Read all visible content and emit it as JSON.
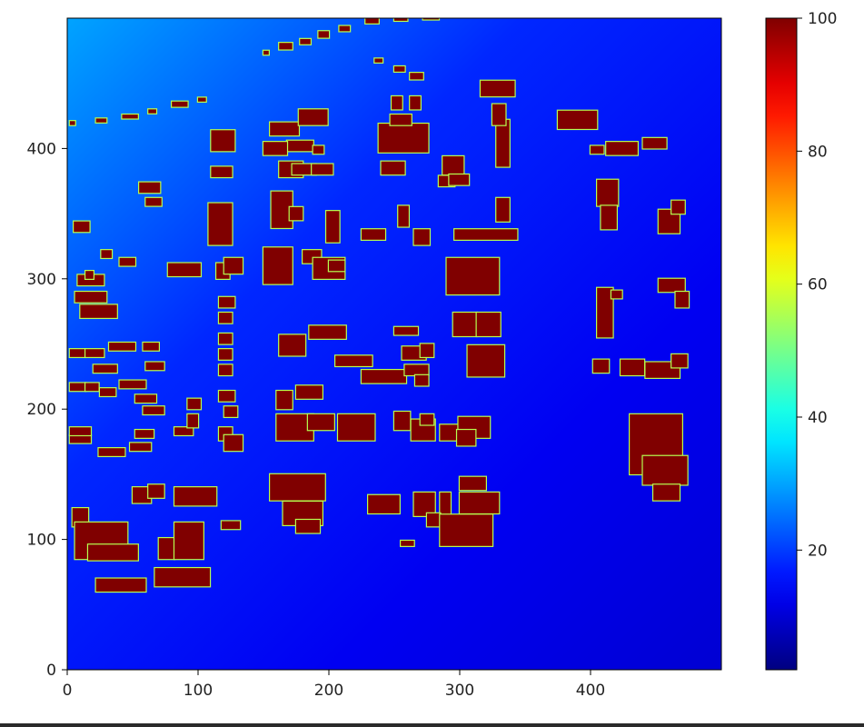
{
  "chart_data": {
    "type": "heatmap",
    "title": "",
    "xlabel": "",
    "ylabel": "",
    "xlim": [
      0,
      500
    ],
    "ylim": [
      0,
      500
    ],
    "xticks": [
      0,
      100,
      200,
      300,
      400
    ],
    "yticks": [
      0,
      100,
      200,
      300,
      400
    ],
    "colormap": "jet",
    "colorbar": {
      "vmin": 2,
      "vmax": 100,
      "ticks": [
        20,
        40,
        60,
        80,
        100
      ]
    },
    "background_level": 12,
    "background_high_corner": "top-left",
    "buildings_value": 100,
    "buildings": [
      [
        2,
        418,
        4,
        3
      ],
      [
        22,
        420,
        8,
        3
      ],
      [
        42,
        423,
        12,
        3
      ],
      [
        62,
        427,
        6,
        3
      ],
      [
        80,
        432,
        12,
        4
      ],
      [
        100,
        436,
        6,
        3
      ],
      [
        150,
        472,
        4,
        3
      ],
      [
        162,
        476,
        10,
        5
      ],
      [
        178,
        480,
        8,
        4
      ],
      [
        192,
        485,
        8,
        5
      ],
      [
        208,
        490,
        8,
        4
      ],
      [
        228,
        496,
        10,
        4
      ],
      [
        250,
        498,
        10,
        3
      ],
      [
        272,
        499,
        12,
        3
      ],
      [
        235,
        466,
        6,
        3
      ],
      [
        250,
        459,
        8,
        4
      ],
      [
        262,
        453,
        10,
        5
      ],
      [
        316,
        440,
        26,
        12
      ],
      [
        375,
        415,
        30,
        14
      ],
      [
        110,
        398,
        18,
        16
      ],
      [
        110,
        378,
        16,
        8
      ],
      [
        155,
        410,
        22,
        10
      ],
      [
        168,
        398,
        20,
        8
      ],
      [
        55,
        366,
        16,
        8
      ],
      [
        60,
        356,
        12,
        6
      ],
      [
        108,
        326,
        18,
        32
      ],
      [
        114,
        300,
        10,
        12
      ],
      [
        77,
        302,
        25,
        10
      ],
      [
        150,
        395,
        18,
        10
      ],
      [
        162,
        378,
        18,
        12
      ],
      [
        177,
        418,
        22,
        12
      ],
      [
        188,
        396,
        8,
        6
      ],
      [
        172,
        380,
        18,
        8
      ],
      [
        187,
        380,
        16,
        8
      ],
      [
        238,
        397,
        38,
        22
      ],
      [
        247,
        418,
        16,
        8
      ],
      [
        240,
        380,
        18,
        10
      ],
      [
        248,
        430,
        8,
        10
      ],
      [
        262,
        430,
        8,
        10
      ],
      [
        287,
        380,
        16,
        14
      ],
      [
        284,
        371,
        12,
        8
      ],
      [
        292,
        372,
        15,
        8
      ],
      [
        328,
        386,
        10,
        36
      ],
      [
        325,
        418,
        10,
        16
      ],
      [
        253,
        340,
        8,
        16
      ],
      [
        265,
        326,
        12,
        12
      ],
      [
        156,
        339,
        16,
        28
      ],
      [
        170,
        345,
        10,
        10
      ],
      [
        198,
        328,
        10,
        24
      ],
      [
        225,
        330,
        18,
        8
      ],
      [
        180,
        312,
        14,
        10
      ],
      [
        120,
        304,
        14,
        12
      ],
      [
        328,
        344,
        10,
        18
      ],
      [
        296,
        330,
        48,
        8
      ],
      [
        150,
        296,
        22,
        28
      ],
      [
        188,
        300,
        24,
        16
      ],
      [
        200,
        306,
        12,
        8
      ],
      [
        290,
        288,
        40,
        28
      ],
      [
        295,
        256,
        18,
        18
      ],
      [
        313,
        256,
        18,
        18
      ],
      [
        250,
        257,
        18,
        6
      ],
      [
        162,
        241,
        20,
        16
      ],
      [
        185,
        254,
        28,
        10
      ],
      [
        205,
        233,
        28,
        8
      ],
      [
        225,
        220,
        34,
        10
      ],
      [
        256,
        238,
        18,
        10
      ],
      [
        270,
        240,
        10,
        10
      ],
      [
        258,
        226,
        18,
        8
      ],
      [
        266,
        218,
        10,
        8
      ],
      [
        160,
        200,
        12,
        14
      ],
      [
        175,
        208,
        20,
        10
      ],
      [
        160,
        176,
        28,
        20
      ],
      [
        184,
        184,
        20,
        12
      ],
      [
        207,
        176,
        28,
        20
      ],
      [
        263,
        176,
        18,
        16
      ],
      [
        285,
        176,
        16,
        12
      ],
      [
        299,
        178,
        24,
        16
      ],
      [
        306,
        225,
        28,
        24
      ],
      [
        250,
        184,
        12,
        14
      ],
      [
        270,
        188,
        10,
        8
      ],
      [
        298,
        172,
        14,
        12
      ],
      [
        155,
        130,
        42,
        20
      ],
      [
        165,
        111,
        30,
        18
      ],
      [
        175,
        105,
        18,
        10
      ],
      [
        230,
        120,
        24,
        14
      ],
      [
        265,
        118,
        16,
        18
      ],
      [
        285,
        118,
        8,
        18
      ],
      [
        300,
        120,
        30,
        16
      ],
      [
        300,
        138,
        20,
        10
      ],
      [
        255,
        95,
        10,
        4
      ],
      [
        275,
        110,
        10,
        10
      ],
      [
        285,
        95,
        40,
        24
      ],
      [
        4,
        110,
        12,
        14
      ],
      [
        6,
        85,
        40,
        28
      ],
      [
        16,
        84,
        38,
        12
      ],
      [
        22,
        60,
        38,
        10
      ],
      [
        50,
        128,
        14,
        12
      ],
      [
        62,
        132,
        12,
        10
      ],
      [
        82,
        126,
        32,
        14
      ],
      [
        70,
        85,
        12,
        16
      ],
      [
        82,
        85,
        22,
        28
      ],
      [
        67,
        64,
        42,
        14
      ],
      [
        118,
        108,
        14,
        6
      ],
      [
        5,
        336,
        12,
        8
      ],
      [
        8,
        295,
        20,
        8
      ],
      [
        6,
        282,
        24,
        8
      ],
      [
        10,
        270,
        28,
        10
      ],
      [
        14,
        300,
        6,
        6
      ],
      [
        26,
        316,
        8,
        6
      ],
      [
        40,
        310,
        12,
        6
      ],
      [
        2,
        240,
        12,
        6
      ],
      [
        14,
        240,
        14,
        6
      ],
      [
        32,
        245,
        20,
        6
      ],
      [
        20,
        228,
        18,
        6
      ],
      [
        2,
        214,
        12,
        6
      ],
      [
        14,
        214,
        10,
        6
      ],
      [
        25,
        210,
        12,
        6
      ],
      [
        40,
        216,
        20,
        6
      ],
      [
        2,
        174,
        16,
        6
      ],
      [
        2,
        180,
        16,
        6
      ],
      [
        24,
        164,
        20,
        6
      ],
      [
        48,
        168,
        16,
        6
      ],
      [
        52,
        178,
        14,
        6
      ],
      [
        58,
        196,
        16,
        6
      ],
      [
        52,
        205,
        16,
        6
      ],
      [
        60,
        230,
        14,
        6
      ],
      [
        58,
        245,
        12,
        6
      ],
      [
        82,
        180,
        14,
        6
      ],
      [
        92,
        186,
        8,
        10
      ],
      [
        92,
        200,
        10,
        8
      ],
      [
        116,
        176,
        10,
        10
      ],
      [
        120,
        168,
        14,
        12
      ],
      [
        120,
        194,
        10,
        8
      ],
      [
        116,
        206,
        12,
        8
      ],
      [
        116,
        226,
        10,
        8
      ],
      [
        116,
        238,
        10,
        8
      ],
      [
        116,
        250,
        10,
        8
      ],
      [
        116,
        266,
        10,
        8
      ],
      [
        116,
        278,
        12,
        8
      ],
      [
        400,
        396,
        10,
        6
      ],
      [
        412,
        395,
        24,
        10
      ],
      [
        440,
        400,
        18,
        8
      ],
      [
        405,
        356,
        16,
        20
      ],
      [
        408,
        338,
        12,
        18
      ],
      [
        452,
        335,
        16,
        18
      ],
      [
        462,
        350,
        10,
        10
      ],
      [
        402,
        228,
        12,
        10
      ],
      [
        405,
        255,
        12,
        38
      ],
      [
        416,
        285,
        8,
        6
      ],
      [
        423,
        226,
        18,
        12
      ],
      [
        442,
        224,
        26,
        12
      ],
      [
        462,
        232,
        12,
        10
      ],
      [
        452,
        290,
        20,
        10
      ],
      [
        465,
        278,
        10,
        12
      ],
      [
        430,
        150,
        40,
        46
      ],
      [
        440,
        142,
        34,
        22
      ],
      [
        448,
        130,
        20,
        12
      ]
    ]
  }
}
